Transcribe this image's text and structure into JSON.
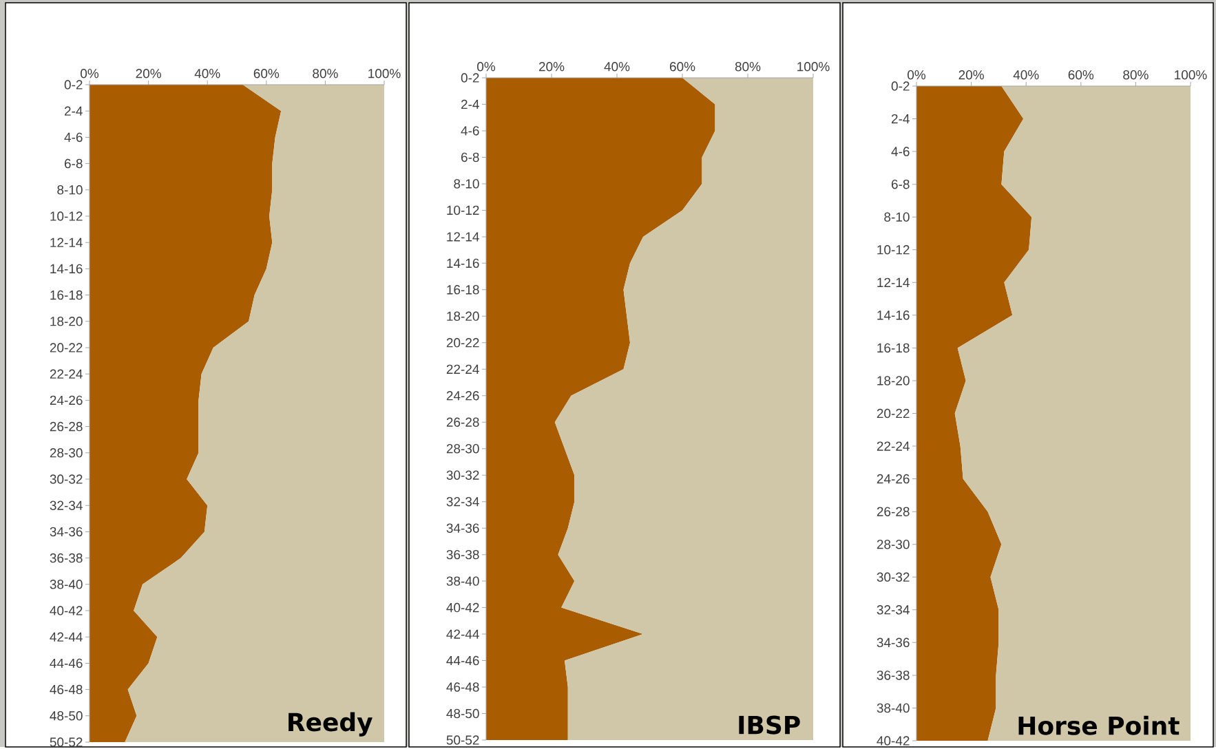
{
  "chart_data": [
    {
      "type": "area",
      "title": "Reedy",
      "orientation": "horizontal",
      "stacked": true,
      "categories": [
        "0-2",
        "2-4",
        "4-6",
        "6-8",
        "8-10",
        "10-12",
        "12-14",
        "14-16",
        "16-18",
        "18-20",
        "20-22",
        "22-24",
        "24-26",
        "26-28",
        "28-30",
        "30-32",
        "32-34",
        "34-36",
        "36-38",
        "38-40",
        "40-42",
        "42-44",
        "44-46",
        "46-48",
        "48-50",
        "50-52"
      ],
      "series": [
        {
          "color": "#a95c00",
          "values": [
            52,
            65,
            63,
            62,
            62,
            61,
            62,
            60,
            56,
            54,
            42,
            38,
            37,
            37,
            37,
            33,
            40,
            39,
            31,
            18,
            15,
            23,
            20,
            13,
            16,
            12
          ]
        },
        {
          "color": "#cfc7a8",
          "values": [
            48,
            35,
            37,
            38,
            38,
            39,
            38,
            40,
            44,
            46,
            58,
            62,
            63,
            63,
            63,
            67,
            60,
            61,
            69,
            82,
            85,
            77,
            80,
            87,
            84,
            88
          ]
        }
      ],
      "xlim": [
        0,
        100
      ],
      "xticks": [
        {
          "value": 0,
          "label": "0%"
        },
        {
          "value": 20,
          "label": "20%"
        },
        {
          "value": 40,
          "label": "40%"
        },
        {
          "value": 60,
          "label": "60%"
        },
        {
          "value": 80,
          "label": "80%"
        },
        {
          "value": 100,
          "label": "100%"
        }
      ]
    },
    {
      "type": "area",
      "title": "IBSP",
      "orientation": "horizontal",
      "stacked": true,
      "categories": [
        "0-2",
        "2-4",
        "4-6",
        "6-8",
        "8-10",
        "10-12",
        "12-14",
        "14-16",
        "16-18",
        "18-20",
        "20-22",
        "22-24",
        "24-26",
        "26-28",
        "28-30",
        "30-32",
        "32-34",
        "34-36",
        "36-38",
        "38-40",
        "40-42",
        "42-44",
        "44-46",
        "46-48",
        "48-50",
        "50-52"
      ],
      "series": [
        {
          "color": "#a95c00",
          "values": [
            60,
            70,
            70,
            66,
            66,
            60,
            48,
            44,
            42,
            43,
            44,
            42,
            26,
            21,
            24,
            27,
            27,
            25,
            22,
            27,
            23,
            48,
            24,
            25,
            25,
            25
          ]
        },
        {
          "color": "#cfc7a8",
          "values": [
            40,
            30,
            30,
            34,
            34,
            40,
            52,
            56,
            58,
            57,
            56,
            58,
            74,
            79,
            76,
            73,
            73,
            75,
            78,
            73,
            77,
            52,
            76,
            75,
            75,
            75
          ]
        }
      ],
      "xlim": [
        0,
        100
      ],
      "xticks": [
        {
          "value": 0,
          "label": "0%"
        },
        {
          "value": 20,
          "label": "20%"
        },
        {
          "value": 40,
          "label": "40%"
        },
        {
          "value": 60,
          "label": "60%"
        },
        {
          "value": 80,
          "label": "80%"
        },
        {
          "value": 100,
          "label": "100%"
        }
      ]
    },
    {
      "type": "area",
      "title": "Horse Point",
      "orientation": "horizontal",
      "stacked": true,
      "categories": [
        "0-2",
        "2-4",
        "4-6",
        "6-8",
        "8-10",
        "10-12",
        "12-14",
        "14-16",
        "16-18",
        "18-20",
        "20-22",
        "22-24",
        "24-26",
        "26-28",
        "28-30",
        "30-32",
        "32-34",
        "34-36",
        "36-38",
        "38-40",
        "40-42"
      ],
      "series": [
        {
          "color": "#a95c00",
          "values": [
            31,
            39,
            32,
            31,
            42,
            41,
            32,
            35,
            15,
            18,
            14,
            16,
            17,
            26,
            31,
            27,
            30,
            30,
            29,
            29,
            26
          ]
        },
        {
          "color": "#cfc7a8",
          "values": [
            69,
            61,
            68,
            69,
            58,
            59,
            68,
            65,
            85,
            82,
            86,
            84,
            83,
            74,
            69,
            73,
            70,
            70,
            71,
            71,
            74
          ]
        }
      ],
      "xlim": [
        0,
        100
      ],
      "xticks": [
        {
          "value": 0,
          "label": "0%"
        },
        {
          "value": 20,
          "label": "20%"
        },
        {
          "value": 40,
          "label": "40%"
        },
        {
          "value": 60,
          "label": "60%"
        },
        {
          "value": 80,
          "label": "80%"
        },
        {
          "value": 100,
          "label": "100%"
        }
      ]
    }
  ]
}
